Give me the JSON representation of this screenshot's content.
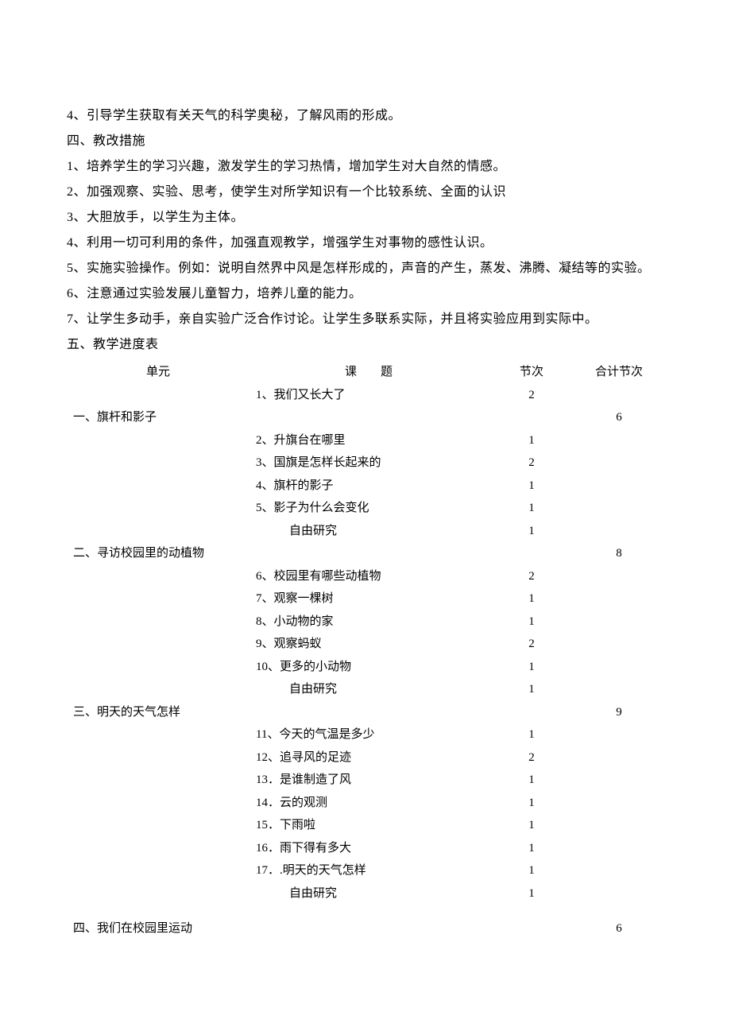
{
  "paragraphs": {
    "p1": "4、引导学生获取有关天气的科学奥秘，了解风雨的形成。",
    "h1": " 四、教改措施",
    "p2": "1、培养学生的学习兴趣，激发学生的学习热情，增加学生对大自然的情感。",
    "p3": "2、加强观察、实验、思考，使学生对所学知识有一个比较系统、全面的认识",
    "p4": "3、大胆放手，以学生为主体。",
    "p5": "4、利用一切可利用的条件，加强直观教学，增强学生对事物的感性认识。",
    "p6": "5、实施实验操作。例如：说明自然界中风是怎样形成的，声音的产生，蒸发、沸腾、凝结等的实验。",
    "p7": "6、注意通过实验发展儿童智力，培养儿童的能力。",
    "p8": "7、让学生多动手，亲自实验广泛合作讨论。让学生多联系实际，并且将实验应用到实际中。",
    "h2": "五、教学进度表"
  },
  "table": {
    "headers": {
      "unit": "单元",
      "topic": "课　　题",
      "sessions": "节次",
      "total": "合计节次"
    },
    "rows": [
      {
        "unit": "",
        "topic": "1、我们又长大了",
        "indent": false,
        "sessions": "2",
        "total": ""
      },
      {
        "unit": "一、旗杆和影子",
        "topic": "",
        "indent": false,
        "sessions": "",
        "total": "6"
      },
      {
        "unit": "",
        "topic": "2、升旗台在哪里",
        "indent": false,
        "sessions": "1",
        "total": ""
      },
      {
        "unit": "",
        "topic": "3、国旗是怎样长起来的",
        "indent": false,
        "sessions": "2",
        "total": ""
      },
      {
        "unit": "",
        "topic": "4、旗杆的影子",
        "indent": false,
        "sessions": "1",
        "total": ""
      },
      {
        "unit": "",
        "topic": "5、影子为什么会变化",
        "indent": false,
        "sessions": "1",
        "total": ""
      },
      {
        "unit": "",
        "topic": "自由研究",
        "indent": true,
        "sessions": "1",
        "total": ""
      },
      {
        "unit": "二、寻访校园里的动植物",
        "topic": "",
        "indent": false,
        "sessions": "",
        "total": "8"
      },
      {
        "unit": "",
        "topic": "6、校园里有哪些动植物",
        "indent": false,
        "sessions": "2",
        "total": ""
      },
      {
        "unit": "",
        "topic": "7、观察一棵树",
        "indent": false,
        "sessions": "1",
        "total": ""
      },
      {
        "unit": "",
        "topic": "8、小动物的家",
        "indent": false,
        "sessions": "1",
        "total": ""
      },
      {
        "unit": "",
        "topic": "9、观察蚂蚁",
        "indent": false,
        "sessions": "2",
        "total": ""
      },
      {
        "unit": "",
        "topic": "10、更多的小动物",
        "indent": false,
        "sessions": "1",
        "total": ""
      },
      {
        "unit": "",
        "topic": "自由研究",
        "indent": true,
        "sessions": "1",
        "total": ""
      },
      {
        "unit": "三、明天的天气怎样",
        "topic": "",
        "indent": false,
        "sessions": "",
        "total": "9"
      },
      {
        "unit": "",
        "topic": "11、今天的气温是多少",
        "indent": false,
        "sessions": "1",
        "total": ""
      },
      {
        "unit": "",
        "topic": "12、追寻风的足迹",
        "indent": false,
        "sessions": "2",
        "total": ""
      },
      {
        "unit": "",
        "topic": "13．是谁制造了风",
        "indent": false,
        "sessions": "1",
        "total": ""
      },
      {
        "unit": "",
        "topic": "14．云的观测",
        "indent": false,
        "sessions": "1",
        "total": ""
      },
      {
        "unit": "",
        "topic": "15．下雨啦",
        "indent": false,
        "sessions": "1",
        "total": ""
      },
      {
        "unit": "",
        "topic": "16．雨下得有多大",
        "indent": false,
        "sessions": "1",
        "total": ""
      },
      {
        "unit": "",
        "topic": "17．.明天的天气怎样",
        "indent": false,
        "sessions": "1",
        "total": ""
      },
      {
        "unit": "",
        "topic": "自由研究",
        "indent": true,
        "sessions": "1",
        "total": ""
      }
    ],
    "footer": {
      "unit": "四、我们在校园里运动",
      "topic": "",
      "sessions": "",
      "total": "6"
    }
  },
  "style": {
    "text_color": "#000000",
    "background": "#ffffff",
    "body_fontsize": 16,
    "table_fontsize": 15
  }
}
